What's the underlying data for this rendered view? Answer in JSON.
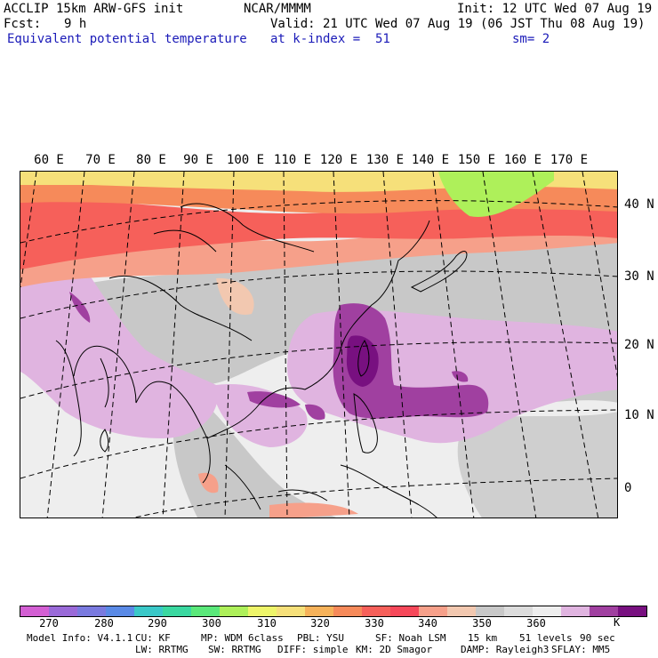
{
  "header": {
    "model": "ACCLIP 15km ARW-GFS init",
    "org": "NCAR/MMMM",
    "init": "Init: 12 UTC Wed 07 Aug 19",
    "fcst_label": "Fcst:",
    "fcst_value": "9 h",
    "valid": "Valid: 21 UTC Wed 07 Aug 19 (06 JST Thu 08 Aug 19)",
    "field": "Equivalent potential temperature",
    "level": "at k-index =  51",
    "smoothing": "sm= 2"
  },
  "map": {
    "lon_labels": [
      "60 E",
      "70 E",
      "80 E",
      "90 E",
      "100 E",
      "110 E",
      "120 E",
      "130 E",
      "140 E",
      "150 E",
      "160 E",
      "170 E"
    ],
    "lat_labels": [
      "40 N",
      "30 N",
      "20 N",
      "10 N",
      "0"
    ]
  },
  "colorbar": {
    "colors": [
      "#d35fd3",
      "#9a6ad8",
      "#7a7adf",
      "#5a8ae6",
      "#3ac8c8",
      "#3ad8a0",
      "#5ae87a",
      "#aef05a",
      "#eef56a",
      "#f6e07a",
      "#f6b25a",
      "#f68a5a",
      "#f6605a",
      "#f6485a",
      "#f6a08a",
      "#f2c8b0",
      "#c8c8c8",
      "#dcdcdc",
      "#eeeeee",
      "#e0b4e0",
      "#a040a0",
      "#781080"
    ],
    "labels": [
      "270",
      "280",
      "290",
      "300",
      "310",
      "320",
      "330",
      "340",
      "350",
      "360"
    ],
    "unit": "K"
  },
  "footer": {
    "line1": [
      "Model Info: V4.1.1",
      "CU: KF",
      "MP: WDM 6class",
      "PBL: YSU",
      "SF: Noah LSM",
      "15 km",
      "51 levels",
      "90 sec"
    ],
    "line2": [
      "LW: RRTMG",
      "SW: RRTMG",
      "DIFF: simple",
      "KM: 2D Smagor",
      "DAMP: Rayleigh3",
      "SFLAY: MM5"
    ]
  }
}
